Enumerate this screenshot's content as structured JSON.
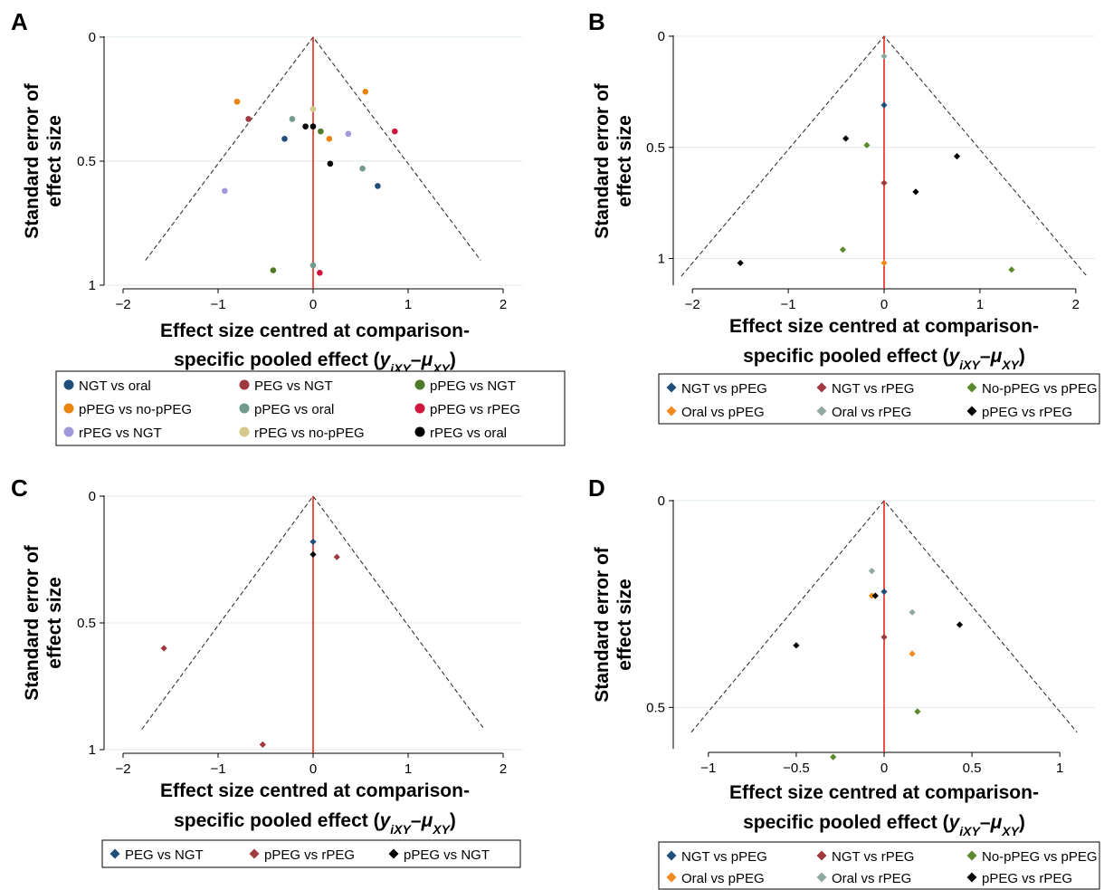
{
  "figure": {
    "panels": [
      "A",
      "B",
      "C",
      "D"
    ]
  },
  "common": {
    "ylabel_lines": [
      "Standard error of",
      "effect size"
    ],
    "xlabel_line1": "Effect size centred at comparison-",
    "xlabel_line2_prefix": "specific pooled effect (",
    "xlabel_y": "y",
    "xlabel_y_sub": "iXY",
    "xlabel_dash": "–",
    "xlabel_mu": "μ",
    "xlabel_mu_sub": "XY",
    "xlabel_close": ")"
  },
  "chart_data": [
    {
      "panel": "A",
      "type": "scatter",
      "marker": "circle",
      "xlim": [
        -2.2,
        2.2
      ],
      "xticks": [
        -2,
        -1,
        0,
        1,
        2
      ],
      "xtick_labels": [
        "−2",
        "−1",
        "0",
        "1",
        "2"
      ],
      "ylim": [
        0,
        1
      ],
      "y_reversed": true,
      "yticks": [
        0,
        0.5,
        1
      ],
      "ytick_labels": [
        "0",
        "0.5",
        "1"
      ],
      "funnel_max_se": 0.9,
      "grid": true,
      "legend_position": "bottom",
      "legend_columns": 3,
      "series": [
        {
          "name": "NGT vs oral",
          "color": "#1f4e79",
          "points": [
            [
              -0.3,
              0.41
            ],
            [
              0.68,
              0.6
            ]
          ]
        },
        {
          "name": "PEG vs NGT",
          "color": "#a0393e",
          "points": [
            [
              -0.68,
              0.33
            ]
          ]
        },
        {
          "name": "pPEG vs NGT",
          "color": "#4e7a2a",
          "points": [
            [
              0.08,
              0.38
            ],
            [
              -0.42,
              0.94
            ]
          ]
        },
        {
          "name": "pPEG vs no-pPEG",
          "color": "#e8840f",
          "points": [
            [
              -0.8,
              0.26
            ],
            [
              0.55,
              0.22
            ],
            [
              0.17,
              0.41
            ]
          ]
        },
        {
          "name": "pPEG vs oral",
          "color": "#6f9a8c",
          "points": [
            [
              -0.22,
              0.33
            ],
            [
              0.52,
              0.53
            ],
            [
              0.0,
              0.92
            ]
          ]
        },
        {
          "name": "pPEG vs rPEG",
          "color": "#d0143c",
          "points": [
            [
              0.86,
              0.38
            ],
            [
              0.07,
              0.95
            ]
          ]
        },
        {
          "name": "rPEG vs NGT",
          "color": "#a299d8",
          "points": [
            [
              -0.93,
              0.62
            ],
            [
              0.37,
              0.39
            ]
          ]
        },
        {
          "name": "rPEG vs no-pPEG",
          "color": "#d6c78a",
          "points": [
            [
              0.0,
              0.29
            ]
          ]
        },
        {
          "name": "rPEG vs oral",
          "color": "#000000",
          "points": [
            [
              -0.08,
              0.36
            ],
            [
              0.0,
              0.36
            ],
            [
              0.18,
              0.51
            ]
          ]
        }
      ]
    },
    {
      "panel": "B",
      "type": "scatter",
      "marker": "diamond",
      "xlim": [
        -2.2,
        2.2
      ],
      "xticks": [
        -2,
        -1,
        0,
        1,
        2
      ],
      "xtick_labels": [
        "−2",
        "−1",
        "0",
        "1",
        "2"
      ],
      "ylim": [
        0,
        1.12
      ],
      "y_reversed": true,
      "yticks": [
        0,
        0.5,
        1
      ],
      "ytick_labels": [
        "0",
        "0.5",
        "1"
      ],
      "funnel_max_se": 1.08,
      "grid": true,
      "legend_position": "bottom",
      "legend_columns": 3,
      "series": [
        {
          "name": "NGT vs pPEG",
          "color": "#1f4e79",
          "points": [
            [
              0.0,
              0.31
            ]
          ]
        },
        {
          "name": "NGT vs rPEG",
          "color": "#a0393e",
          "points": [
            [
              0.0,
              0.66
            ]
          ]
        },
        {
          "name": "No-pPEG vs pPEG",
          "color": "#5b8a2e",
          "points": [
            [
              -0.18,
              0.49
            ],
            [
              -0.43,
              0.96
            ],
            [
              1.33,
              1.05
            ]
          ]
        },
        {
          "name": "Oral vs pPEG",
          "color": "#f08a1c",
          "points": [
            [
              0.0,
              1.02
            ]
          ]
        },
        {
          "name": "Oral vs rPEG",
          "color": "#8fa99e",
          "points": [
            [
              0.0,
              0.09
            ]
          ]
        },
        {
          "name": "pPEG vs rPEG",
          "color": "#000000",
          "points": [
            [
              -0.4,
              0.46
            ],
            [
              0.76,
              0.54
            ],
            [
              0.33,
              0.7
            ],
            [
              -1.5,
              1.02
            ]
          ]
        }
      ]
    },
    {
      "panel": "C",
      "type": "scatter",
      "marker": "diamond",
      "xlim": [
        -2.2,
        2.2
      ],
      "xticks": [
        -2,
        -1,
        0,
        1,
        2
      ],
      "xtick_labels": [
        "−2",
        "−1",
        "0",
        "1",
        "2"
      ],
      "ylim": [
        0,
        1
      ],
      "y_reversed": true,
      "yticks": [
        0,
        0.5,
        1
      ],
      "ytick_labels": [
        "0",
        "0.5",
        "1"
      ],
      "funnel_max_se": 0.92,
      "grid": true,
      "legend_position": "bottom",
      "legend_columns": 3,
      "series": [
        {
          "name": "PEG vs NGT",
          "color": "#1f4e79",
          "points": [
            [
              0.0,
              0.18
            ]
          ]
        },
        {
          "name": "pPEG vs rPEG",
          "color": "#a0393e",
          "points": [
            [
              0.25,
              0.24
            ],
            [
              -1.57,
              0.6
            ],
            [
              -0.53,
              0.98
            ]
          ]
        },
        {
          "name": "pPEG vs NGT",
          "color": "#000000",
          "points": [
            [
              0.0,
              0.23
            ]
          ]
        }
      ]
    },
    {
      "panel": "D",
      "type": "scatter",
      "marker": "diamond",
      "xlim": [
        -1.2,
        1.2
      ],
      "xticks": [
        -1,
        -0.5,
        0,
        0.5,
        1
      ],
      "xtick_labels": [
        "−1",
        "−0.5",
        "0",
        "0.5",
        "1"
      ],
      "ylim": [
        0,
        0.6
      ],
      "y_reversed": true,
      "yticks": [
        0,
        0.5
      ],
      "ytick_labels": [
        "0",
        "0.5"
      ],
      "funnel_max_se": 0.56,
      "grid": true,
      "legend_position": "bottom",
      "legend_columns": 3,
      "series": [
        {
          "name": "NGT vs pPEG",
          "color": "#1f4e79",
          "points": [
            [
              0.0,
              0.22
            ]
          ]
        },
        {
          "name": "NGT vs rPEG",
          "color": "#a0393e",
          "points": [
            [
              0.0,
              0.33
            ]
          ]
        },
        {
          "name": "No-pPEG vs pPEG",
          "color": "#5b8a2e",
          "points": [
            [
              0.19,
              0.51
            ],
            [
              -0.29,
              0.62
            ]
          ]
        },
        {
          "name": "Oral vs pPEG",
          "color": "#f08a1c",
          "points": [
            [
              -0.07,
              0.23
            ],
            [
              0.16,
              0.37
            ]
          ]
        },
        {
          "name": "Oral vs rPEG",
          "color": "#8fa99e",
          "points": [
            [
              -0.07,
              0.17
            ],
            [
              0.16,
              0.27
            ]
          ]
        },
        {
          "name": "pPEG vs rPEG",
          "color": "#000000",
          "points": [
            [
              -0.05,
              0.23
            ],
            [
              0.43,
              0.3
            ],
            [
              -0.5,
              0.35
            ]
          ]
        }
      ]
    }
  ]
}
